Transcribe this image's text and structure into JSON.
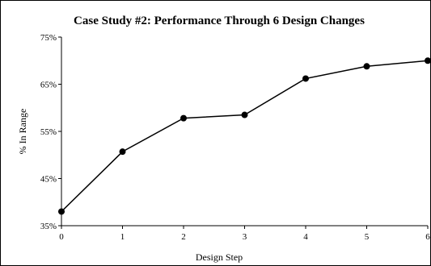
{
  "chart_data": {
    "type": "line",
    "title": "Case Study #2: Performance Through 6 Design Changes",
    "xlabel": "Design Step",
    "ylabel": "% In Range",
    "x": [
      0,
      1,
      2,
      3,
      4,
      5,
      6
    ],
    "y_tick_labels": [
      "35%",
      "45%",
      "55%",
      "65%",
      "75%"
    ],
    "x_tick_labels": [
      "0",
      "1",
      "2",
      "3",
      "4",
      "5",
      "6"
    ],
    "series": [
      {
        "values": [
          38,
          50.7,
          57.8,
          58.5,
          66.2,
          68.8,
          70
        ]
      }
    ],
    "ylim": [
      35,
      75
    ],
    "xlim": [
      0,
      6
    ],
    "grid": false,
    "legend": "none",
    "colors": {
      "line": "#000000",
      "marker": "#000000",
      "axis": "#000000"
    }
  }
}
